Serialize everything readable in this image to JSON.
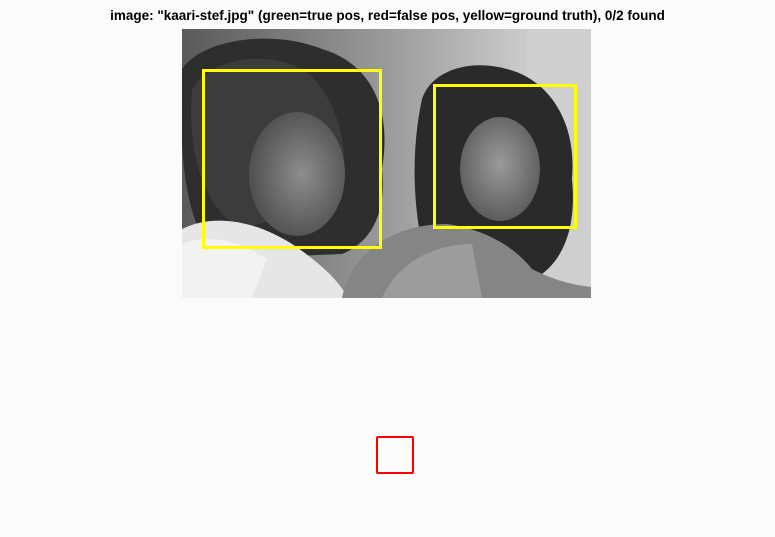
{
  "title": "image: \"kaari-stef.jpg\" (green=true pos, red=false pos, yellow=ground truth), 0/2 found",
  "colors": {
    "ground_truth": "#ffff00",
    "true_positive": "#00ff00",
    "false_positive": "#ff0000",
    "background": "#fbfbfb"
  },
  "photo": {
    "mode": "grayscale",
    "subject_count": 2
  },
  "ground_truth_boxes": [
    {
      "name": "left-face"
    },
    {
      "name": "right-face"
    }
  ],
  "false_positive_count": 1,
  "true_positive_count": 0
}
